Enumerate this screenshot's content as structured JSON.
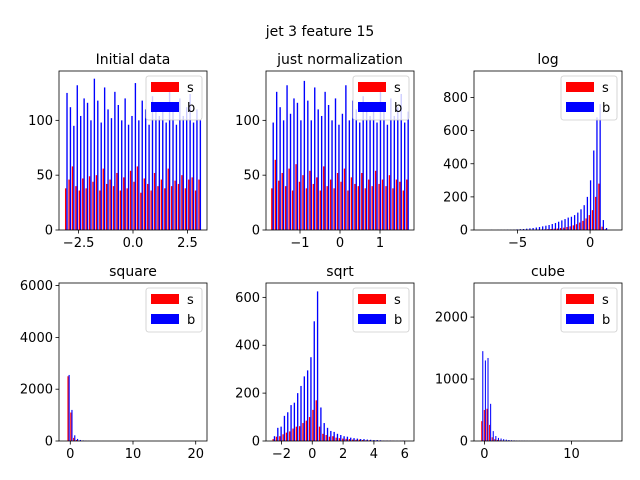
{
  "figure": {
    "suptitle": "jet 3 feature 15"
  },
  "colors": {
    "s": "#ff0000",
    "b": "#0000ff"
  },
  "chart_data": [
    {
      "type": "bar",
      "title": "Initial data",
      "xlim": [
        -3.4,
        3.4
      ],
      "ylim": [
        0,
        145
      ],
      "xticks": [
        -2.5,
        0.0,
        2.5
      ],
      "xtick_labels": [
        "−2.5",
        "0.0",
        "2.5"
      ],
      "yticks": [
        0,
        50,
        100
      ],
      "ytick_labels": [
        "0",
        "50",
        "100"
      ],
      "legend": {
        "position": "upper-right",
        "entries": [
          "s",
          "b"
        ]
      },
      "bin_start": -3.1416,
      "bin_width": 0.1571,
      "series": [
        {
          "name": "s",
          "values": [
            38,
            46,
            58,
            40,
            36,
            47,
            38,
            49,
            44,
            50,
            36,
            56,
            42,
            46,
            40,
            52,
            36,
            48,
            38,
            54,
            44,
            58,
            34,
            47,
            42,
            36,
            52,
            40,
            46,
            38,
            56,
            40,
            45,
            42,
            50,
            38,
            46,
            48,
            36,
            46
          ]
        },
        {
          "name": "b",
          "values": [
            125,
            112,
            95,
            132,
            104,
            120,
            116,
            100,
            138,
            118,
            98,
            130,
            110,
            102,
            126,
            114,
            100,
            120,
            96,
            104,
            134,
            100,
            118,
            110,
            96,
            122,
            112,
            104,
            116,
            98,
            128,
            110,
            96,
            120,
            104,
            112,
            124,
            98,
            110,
            100
          ]
        }
      ]
    },
    {
      "type": "bar",
      "title": "just normalization",
      "xlim": [
        -1.85,
        1.85
      ],
      "ylim": [
        0,
        145
      ],
      "xticks": [
        -1,
        0,
        1
      ],
      "xtick_labels": [
        "−1",
        "0",
        "1"
      ],
      "yticks": [
        0,
        50,
        100
      ],
      "ytick_labels": [
        "0",
        "50",
        "100"
      ],
      "legend": {
        "position": "upper-right",
        "entries": [
          "s",
          "b"
        ]
      },
      "bin_start": -1.73,
      "bin_width": 0.0865,
      "series": [
        {
          "name": "s",
          "values": [
            38,
            64,
            45,
            52,
            40,
            56,
            36,
            60,
            44,
            50,
            38,
            54,
            42,
            48,
            36,
            58,
            40,
            46,
            38,
            52,
            44,
            56,
            36,
            48,
            42,
            40,
            52,
            38,
            46,
            40,
            54,
            42,
            46,
            40,
            50,
            38,
            46,
            44,
            36,
            46
          ]
        },
        {
          "name": "b",
          "values": [
            98,
            126,
            112,
            100,
            132,
            106,
            120,
            116,
            100,
            136,
            118,
            100,
            130,
            110,
            104,
            126,
            114,
            100,
            120,
            96,
            106,
            132,
            100,
            118,
            110,
            98,
            122,
            112,
            104,
            116,
            98,
            128,
            110,
            96,
            120,
            104,
            112,
            124,
            98,
            108
          ]
        }
      ]
    },
    {
      "type": "bar",
      "title": "log",
      "xlim": [
        -8.0,
        2.2
      ],
      "ylim": [
        0,
        960
      ],
      "xticks": [
        -5,
        0
      ],
      "xtick_labels": [
        "−5",
        "0"
      ],
      "yticks": [
        0,
        200,
        400,
        600,
        800
      ],
      "ytick_labels": [
        "0",
        "200",
        "400",
        "600",
        "800"
      ],
      "legend": {
        "position": "upper-right",
        "entries": [
          "s",
          "b"
        ]
      },
      "bin_start": -7.6,
      "bin_width": 0.22,
      "series": [
        {
          "name": "s",
          "values": [
            0,
            0,
            0,
            0,
            0,
            0,
            0,
            0,
            0,
            0,
            0,
            0,
            0,
            1,
            0,
            1,
            1,
            2,
            2,
            3,
            4,
            5,
            6,
            8,
            9,
            12,
            14,
            18,
            22,
            28,
            35,
            45,
            55,
            70,
            90,
            120,
            200,
            280,
            20,
            5
          ]
        },
        {
          "name": "b",
          "values": [
            0,
            0,
            0,
            1,
            0,
            1,
            1,
            1,
            2,
            2,
            3,
            4,
            5,
            6,
            8,
            10,
            12,
            15,
            18,
            22,
            26,
            30,
            36,
            42,
            50,
            58,
            66,
            75,
            80,
            90,
            105,
            125,
            150,
            200,
            300,
            480,
            680,
            760,
            60,
            12
          ]
        }
      ]
    },
    {
      "type": "bar",
      "title": "square",
      "xlim": [
        -1.8,
        21.8
      ],
      "ylim": [
        0,
        6100
      ],
      "xticks": [
        0,
        10,
        20
      ],
      "xtick_labels": [
        "0",
        "10",
        "20"
      ],
      "yticks": [
        0,
        2000,
        4000,
        6000
      ],
      "ytick_labels": [
        "0",
        "2000",
        "4000",
        "6000"
      ],
      "legend": {
        "position": "upper-right",
        "entries": [
          "s",
          "b"
        ]
      },
      "bin_start": -0.5,
      "bin_width": 0.45,
      "series": [
        {
          "name": "s",
          "values": [
            2500,
            1100,
            120,
            40,
            20,
            10,
            6,
            4,
            2,
            1,
            1,
            1,
            0,
            0,
            0,
            0,
            0,
            0,
            0,
            0,
            0,
            0,
            0,
            0,
            0,
            0,
            0,
            0,
            0,
            0,
            0,
            0,
            0,
            0,
            0,
            0,
            0,
            0,
            0,
            1
          ]
        },
        {
          "name": "b",
          "values": [
            2550,
            1200,
            220,
            80,
            40,
            22,
            12,
            8,
            5,
            3,
            2,
            1,
            1,
            0,
            0,
            0,
            0,
            0,
            0,
            0,
            0,
            0,
            0,
            0,
            0,
            0,
            0,
            0,
            0,
            0,
            0,
            0,
            0,
            0,
            0,
            0,
            0,
            0,
            0,
            1
          ]
        }
      ]
    },
    {
      "type": "bar",
      "title": "sqrt",
      "xlim": [
        -3.0,
        6.6
      ],
      "ylim": [
        0,
        660
      ],
      "xticks": [
        -2,
        0,
        2,
        4,
        6
      ],
      "xtick_labels": [
        "−2",
        "0",
        "2",
        "4",
        "6"
      ],
      "yticks": [
        0,
        200,
        400,
        600
      ],
      "ytick_labels": [
        "0",
        "200",
        "400",
        "600"
      ],
      "legend": {
        "position": "upper-right",
        "entries": [
          "s",
          "b"
        ]
      },
      "bin_start": -2.6,
      "bin_width": 0.215,
      "series": [
        {
          "name": "s",
          "values": [
            8,
            18,
            20,
            28,
            35,
            40,
            52,
            60,
            62,
            75,
            85,
            100,
            130,
            170,
            60,
            30,
            25,
            18,
            20,
            14,
            12,
            10,
            9,
            8,
            6,
            5,
            6,
            4,
            3,
            3,
            2,
            2,
            2,
            1,
            1,
            1,
            1,
            0,
            0,
            1
          ]
        },
        {
          "name": "b",
          "values": [
            20,
            55,
            60,
            105,
            120,
            150,
            160,
            200,
            230,
            270,
            295,
            350,
            500,
            625,
            140,
            75,
            55,
            42,
            38,
            30,
            25,
            20,
            18,
            14,
            12,
            10,
            8,
            8,
            6,
            5,
            4,
            4,
            3,
            2,
            2,
            2,
            1,
            1,
            1,
            2
          ]
        }
      ]
    },
    {
      "type": "bar",
      "title": "cube",
      "xlim": [
        -1.2,
        15.8
      ],
      "ylim": [
        0,
        2550
      ],
      "xticks": [
        0,
        10
      ],
      "xtick_labels": [
        "0",
        "10"
      ],
      "yticks": [
        0,
        1000,
        2000
      ],
      "ytick_labels": [
        "0",
        "1000",
        "2000"
      ],
      "legend": {
        "position": "upper-right",
        "entries": [
          "s",
          "b"
        ]
      },
      "bin_start": -0.4,
      "bin_width": 0.3,
      "series": [
        {
          "name": "s",
          "values": [
            320,
            500,
            520,
            260,
            60,
            30,
            18,
            12,
            8,
            6,
            4,
            3,
            2,
            2,
            1,
            1,
            1,
            1,
            0,
            0,
            0,
            0,
            0,
            0,
            0,
            0,
            0,
            0,
            0,
            0,
            0,
            0,
            0,
            0,
            0,
            0,
            0,
            0,
            0,
            1
          ]
        },
        {
          "name": "b",
          "values": [
            1450,
            1300,
            1340,
            600,
            160,
            80,
            50,
            40,
            30,
            22,
            16,
            12,
            10,
            8,
            6,
            5,
            4,
            3,
            2,
            2,
            2,
            1,
            1,
            1,
            0,
            0,
            0,
            0,
            0,
            0,
            0,
            0,
            0,
            0,
            0,
            0,
            0,
            0,
            0,
            1
          ]
        }
      ]
    }
  ]
}
